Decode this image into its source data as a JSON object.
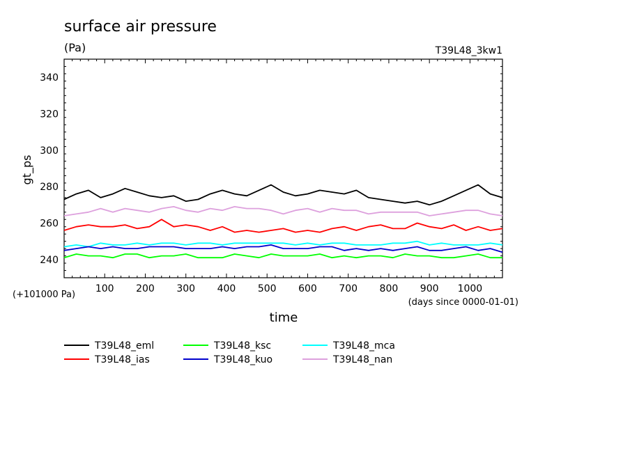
{
  "header": {
    "title": "surface air pressure",
    "units": "(Pa)",
    "run_label": "T39L48_3kw1",
    "offset_note": "(+101000 Pa)",
    "x_note": "(days since 0000-01-01)"
  },
  "chart_data": {
    "type": "line",
    "title": "surface air pressure",
    "xlabel": "time",
    "ylabel": "gt_ps",
    "xlim": [
      0,
      1080
    ],
    "ylim": [
      230,
      350
    ],
    "x_ticks": [
      100,
      200,
      300,
      400,
      500,
      600,
      700,
      800,
      900,
      1000
    ],
    "x_tick_labels": [
      "100",
      "200",
      "300",
      "400",
      "500",
      "600",
      "700",
      "800",
      "900",
      "1000"
    ],
    "y_ticks": [
      240,
      260,
      280,
      300,
      320,
      340
    ],
    "y_tick_labels": [
      "240",
      "260",
      "280",
      "300",
      "320",
      "340"
    ],
    "grid": false,
    "legend_position": "bottom",
    "x": [
      0,
      30,
      60,
      90,
      120,
      150,
      180,
      210,
      240,
      270,
      300,
      330,
      360,
      390,
      420,
      450,
      480,
      510,
      540,
      570,
      600,
      630,
      660,
      690,
      720,
      750,
      780,
      810,
      840,
      870,
      900,
      930,
      960,
      990,
      1020,
      1050,
      1080
    ],
    "series": [
      {
        "name": "T39L48_eml",
        "color": "#000000",
        "values": [
          273,
          276,
          278,
          274,
          276,
          279,
          277,
          275,
          274,
          275,
          272,
          273,
          276,
          278,
          276,
          275,
          278,
          281,
          277,
          275,
          276,
          278,
          277,
          276,
          278,
          274,
          273,
          272,
          271,
          272,
          270,
          272,
          275,
          278,
          281,
          276,
          274
        ]
      },
      {
        "name": "T39L48_ias",
        "color": "#ff0000",
        "values": [
          256,
          258,
          259,
          258,
          258,
          259,
          257,
          258,
          262,
          258,
          259,
          258,
          256,
          258,
          255,
          256,
          255,
          256,
          257,
          255,
          256,
          255,
          257,
          258,
          256,
          258,
          259,
          257,
          257,
          260,
          258,
          257,
          259,
          256,
          258,
          256,
          257
        ]
      },
      {
        "name": "T39L48_ksc",
        "color": "#00ff00",
        "values": [
          241,
          243,
          242,
          242,
          241,
          243,
          243,
          241,
          242,
          242,
          243,
          241,
          241,
          241,
          243,
          242,
          241,
          243,
          242,
          242,
          242,
          243,
          241,
          242,
          241,
          242,
          242,
          241,
          243,
          242,
          242,
          241,
          241,
          242,
          243,
          241,
          241
        ]
      },
      {
        "name": "T39L48_kuo",
        "color": "#0000cc",
        "values": [
          245,
          246,
          247,
          246,
          247,
          246,
          246,
          247,
          247,
          247,
          246,
          246,
          246,
          247,
          246,
          247,
          247,
          248,
          246,
          246,
          246,
          247,
          247,
          245,
          246,
          245,
          246,
          245,
          246,
          247,
          245,
          245,
          246,
          247,
          245,
          246,
          244
        ]
      },
      {
        "name": "T39L48_mca",
        "color": "#00ffff",
        "values": [
          247,
          248,
          247,
          249,
          248,
          248,
          249,
          248,
          249,
          249,
          248,
          249,
          249,
          248,
          249,
          249,
          249,
          249,
          249,
          248,
          249,
          248,
          249,
          249,
          248,
          248,
          248,
          249,
          249,
          250,
          248,
          249,
          248,
          248,
          248,
          249,
          248
        ]
      },
      {
        "name": "T39L48_nan",
        "color": "#dda0dd",
        "values": [
          264,
          265,
          266,
          268,
          266,
          268,
          267,
          266,
          268,
          269,
          267,
          266,
          268,
          267,
          269,
          268,
          268,
          267,
          265,
          267,
          268,
          266,
          268,
          267,
          267,
          265,
          266,
          266,
          266,
          266,
          264,
          265,
          266,
          267,
          267,
          265,
          264
        ]
      }
    ]
  }
}
